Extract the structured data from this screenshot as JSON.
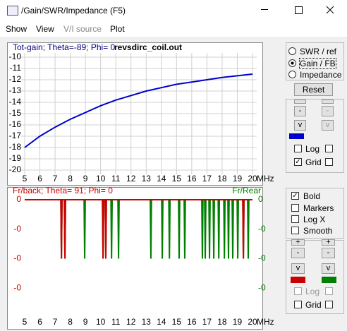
{
  "window": {
    "title": "/Gain/SWR/Impedance (F5)",
    "menu": [
      "Show",
      "View",
      "V/I source",
      "Plot"
    ]
  },
  "chart_data": [
    {
      "type": "line",
      "title": "Tot-gain; Theta=-89; Phi= 0",
      "subtitle": "revsdirc_coil.out",
      "x_unit": "MHz",
      "x": [
        5,
        6,
        7,
        8,
        9,
        10,
        11,
        12,
        13,
        14,
        15,
        16,
        17,
        18,
        19,
        20
      ],
      "series": [
        {
          "color": "#0000cc",
          "values": [
            -18.0,
            -17.0,
            -16.2,
            -15.5,
            -14.9,
            -14.3,
            -13.8,
            -13.4,
            -13.0,
            -12.7,
            -12.4,
            -12.2,
            -12.0,
            -11.8,
            -11.65,
            -11.5
          ]
        }
      ],
      "xlim": [
        5,
        20
      ],
      "xticks": [
        5,
        6,
        7,
        8,
        9,
        10,
        11,
        12,
        13,
        14,
        15,
        16,
        17,
        18,
        19,
        20
      ],
      "ylim": [
        -20,
        -10
      ],
      "yticks": [
        -10,
        -11,
        -12,
        -13,
        -14,
        -15,
        -16,
        -17,
        -18,
        -19,
        -20
      ],
      "grid": true
    },
    {
      "type": "line",
      "title": "Fr/back; Theta= 91; Phi= 0",
      "y2_label": "Fr/Rear",
      "x_unit": "MHz",
      "series": [
        {
          "color": "#008000",
          "axis": "y2",
          "x": [
            5,
            7.38,
            7.42,
            7.46,
            7.61,
            7.65,
            7.69,
            8.91,
            8.95,
            8.99,
            10.12,
            10.16,
            10.2,
            10.3,
            10.34,
            10.38,
            10.68,
            10.72,
            10.76,
            11.14,
            11.18,
            11.22,
            13.27,
            13.31,
            13.35,
            14.02,
            14.06,
            14.1,
            14.49,
            14.53,
            14.57,
            15.13,
            15.17,
            15.21,
            15.5,
            15.54,
            15.58,
            16.66,
            16.7,
            16.74,
            16.85,
            16.89,
            16.93,
            17.13,
            17.17,
            17.21,
            17.41,
            17.45,
            17.49,
            17.74,
            17.78,
            17.82,
            18.11,
            18.15,
            18.19,
            18.38,
            18.42,
            18.46,
            18.66,
            18.7,
            18.74,
            18.99,
            19.03,
            19.07,
            19.36,
            19.4,
            19.44,
            19.68,
            19.72,
            19.76,
            20
          ],
          "values": [
            0,
            0,
            -0.2,
            0,
            0,
            -0.2,
            0,
            0,
            -0.2,
            0,
            0,
            -0.2,
            0,
            0,
            -0.2,
            0,
            0,
            -0.2,
            0,
            0,
            -0.2,
            0,
            0,
            -0.2,
            0,
            0,
            -0.2,
            0,
            0,
            -0.2,
            0,
            0,
            -0.2,
            0,
            0,
            -0.2,
            0,
            0,
            -0.2,
            0,
            0,
            -0.2,
            0,
            0,
            -0.2,
            0,
            0,
            -0.2,
            0,
            0,
            -0.2,
            0,
            0,
            -0.2,
            0,
            0,
            -0.2,
            0,
            0,
            -0.2,
            0,
            0,
            -0.2,
            0,
            0,
            -0.2,
            0,
            0,
            -0.2,
            0,
            0
          ]
        },
        {
          "color": "#cc0000",
          "axis": "y",
          "x": [
            5,
            7.38,
            7.42,
            7.46,
            7.61,
            7.65,
            7.69,
            10.12,
            10.16,
            10.2,
            10.3,
            10.34,
            10.38,
            19.36,
            19.4,
            19.44,
            20
          ],
          "values": [
            0,
            0,
            -0.2,
            0,
            0,
            -0.2,
            0,
            0,
            -0.2,
            0,
            0,
            -0.2,
            0,
            0,
            -0.2,
            0,
            0
          ]
        }
      ],
      "xlim": [
        5,
        20
      ],
      "xticks": [
        5,
        6,
        7,
        8,
        9,
        10,
        11,
        12,
        13,
        14,
        15,
        16,
        17,
        18,
        19,
        20
      ],
      "ylim": [
        -0.4,
        0
      ],
      "yticks": [
        0,
        {
          "value": -0.1,
          "label": "-0"
        },
        {
          "value": -0.2,
          "label": "-0"
        },
        {
          "value": -0.3,
          "label": "-0"
        }
      ],
      "y2lim": [
        -0.4,
        0
      ],
      "y2ticks": [
        0,
        {
          "value": -0.1,
          "label": "-0"
        },
        {
          "value": -0.2,
          "label": "-0"
        },
        {
          "value": -0.3,
          "label": "-0"
        }
      ],
      "grid": false
    }
  ],
  "controls": {
    "radios": [
      "SWR / ref",
      "Gain / FB",
      "Impedance"
    ],
    "reset": "Reset",
    "top_buttons": [
      "-",
      "-",
      "v",
      "v"
    ],
    "top_checks": [
      "Log",
      "Grid"
    ],
    "bottom_checks": [
      "Bold",
      "Markers",
      "Log X",
      "Smooth"
    ],
    "bottom_buttons": [
      "+",
      "+",
      "-",
      "-",
      "v",
      "v"
    ],
    "bottom_checks2": [
      "Log",
      "Grid"
    ]
  }
}
